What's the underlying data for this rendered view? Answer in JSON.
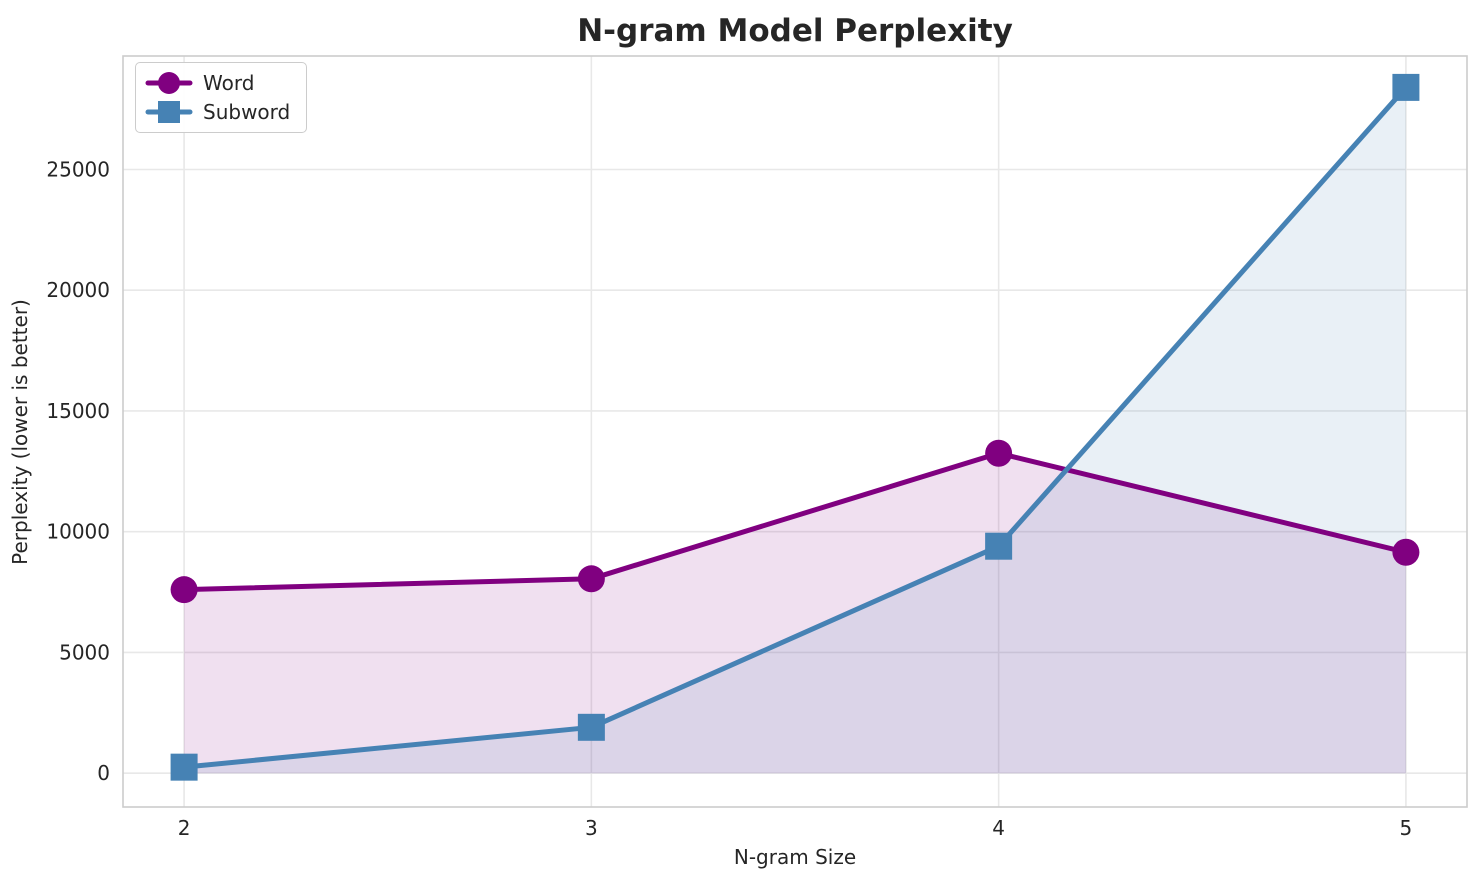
{
  "chart_data": {
    "type": "line",
    "title": "N-gram Model Perplexity",
    "xlabel": "N-gram Size",
    "ylabel": "Perplexity (lower is better)",
    "x": [
      2,
      3,
      4,
      5
    ],
    "series": [
      {
        "name": "Word",
        "color": "#800080",
        "marker": "circle",
        "values": [
          7600,
          8050,
          13250,
          9150
        ]
      },
      {
        "name": "Subword",
        "color": "#4682B4",
        "marker": "square",
        "values": [
          250,
          1900,
          9400,
          28400
        ]
      }
    ],
    "xlim": [
      1.85,
      5.15
    ],
    "ylim": [
      -1400,
      29700
    ],
    "xticks": [
      2,
      3,
      4,
      5
    ],
    "yticks": [
      0,
      5000,
      10000,
      15000,
      20000,
      25000
    ],
    "grid": true,
    "legend_position": "upper left",
    "area_fill": true,
    "fill_alpha": 0.12,
    "line_width": 5,
    "colors": {
      "text": "#262626",
      "title": "#1a1a1a",
      "grid": "#e8e8e8",
      "spine": "#cccccc",
      "background": "#ffffff"
    }
  }
}
